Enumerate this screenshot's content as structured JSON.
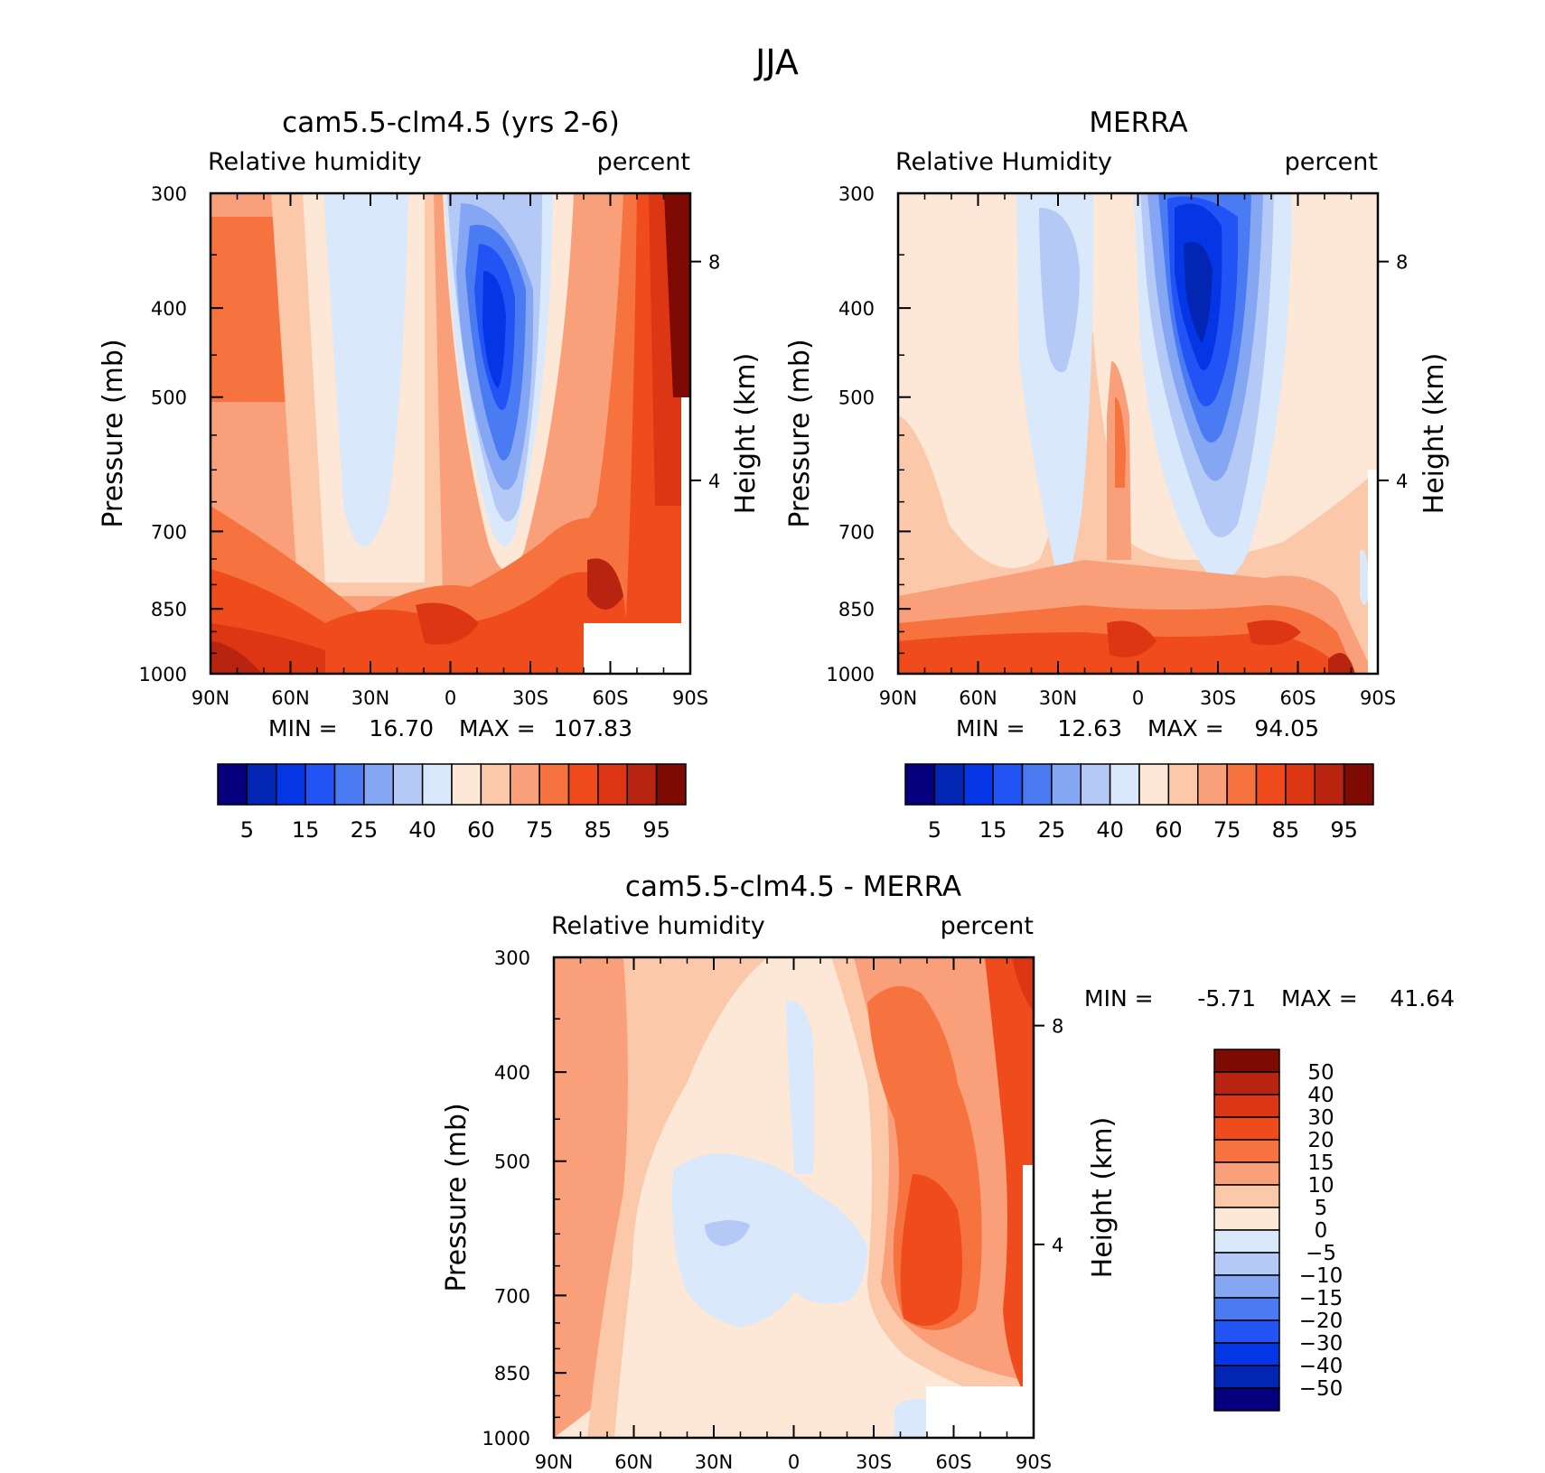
{
  "figure": {
    "title": "JJA"
  },
  "chart_data": [
    {
      "type": "heatmap",
      "title": "cam5.5-clm4.5 (yrs 2-6)",
      "left_label": "Relative humidity",
      "right_label": "percent",
      "ylabel": "Pressure (mb)",
      "y2label": "Height (km)",
      "xticks": [
        "90N",
        "60N",
        "30N",
        "0",
        "30S",
        "60S",
        "90S"
      ],
      "yticks": [
        "300",
        "400",
        "500",
        "700",
        "850",
        "1000"
      ],
      "y2ticks": [
        "8",
        "4"
      ],
      "min_label": "MIN =",
      "min_value": "16.70",
      "max_label": "MAX =",
      "max_value": "107.83",
      "colorbar_labels": [
        "5",
        "15",
        "25",
        "40",
        "60",
        "75",
        "85",
        "95"
      ],
      "colorbar_colors": [
        "#06007e",
        "#0325b4",
        "#0536e6",
        "#2253f5",
        "#4b7bf2",
        "#84a6f3",
        "#b4c9f6",
        "#d9e8fa",
        "#fde8d7",
        "#fbc8aa",
        "#f9a07a",
        "#f6723f",
        "#ef4b1c",
        "#dc3614",
        "#b82410",
        "#7e0a04"
      ],
      "ylim": [
        1000,
        300
      ]
    },
    {
      "type": "heatmap",
      "title": "MERRA",
      "left_label": "Relative Humidity",
      "right_label": "percent",
      "ylabel": "Pressure (mb)",
      "y2label": "Height (km)",
      "xticks": [
        "90N",
        "60N",
        "30N",
        "0",
        "30S",
        "60S",
        "90S"
      ],
      "yticks": [
        "300",
        "400",
        "500",
        "700",
        "850",
        "1000"
      ],
      "y2ticks": [
        "8",
        "4"
      ],
      "min_label": "MIN =",
      "min_value": "12.63",
      "max_label": "MAX =",
      "max_value": "94.05",
      "colorbar_labels": [
        "5",
        "15",
        "25",
        "40",
        "60",
        "75",
        "85",
        "95"
      ],
      "colorbar_colors": [
        "#06007e",
        "#0325b4",
        "#0536e6",
        "#2253f5",
        "#4b7bf2",
        "#84a6f3",
        "#b4c9f6",
        "#d9e8fa",
        "#fde8d7",
        "#fbc8aa",
        "#f9a07a",
        "#f6723f",
        "#ef4b1c",
        "#dc3614",
        "#b82410",
        "#7e0a04"
      ],
      "ylim": [
        1000,
        300
      ]
    },
    {
      "type": "heatmap",
      "title": "cam5.5-clm4.5 - MERRA",
      "left_label": "Relative humidity",
      "right_label": "percent",
      "ylabel": "Pressure (mb)",
      "y2label": "Height (km)",
      "xticks": [
        "90N",
        "60N",
        "30N",
        "0",
        "30S",
        "60S",
        "90S"
      ],
      "yticks": [
        "300",
        "400",
        "500",
        "700",
        "850",
        "1000"
      ],
      "y2ticks": [
        "8",
        "4"
      ],
      "min_label": "MIN =",
      "min_value": "-5.71",
      "max_label": "MAX =",
      "max_value": "41.64",
      "colorbar_labels": [
        "50",
        "40",
        "30",
        "20",
        "15",
        "10",
        "5",
        "0",
        "-5",
        "-10",
        "-15",
        "-20",
        "-30",
        "-40",
        "-50"
      ],
      "colorbar_colors": [
        "#7e0a04",
        "#b82410",
        "#dc3614",
        "#ef4b1c",
        "#f6723f",
        "#f9a07a",
        "#fbc8aa",
        "#fde8d7",
        "#d9e8fa",
        "#b4c9f6",
        "#84a6f3",
        "#4b7bf2",
        "#2253f5",
        "#0536e6",
        "#0325b4",
        "#06007e"
      ],
      "ylim": [
        1000,
        300
      ]
    }
  ]
}
